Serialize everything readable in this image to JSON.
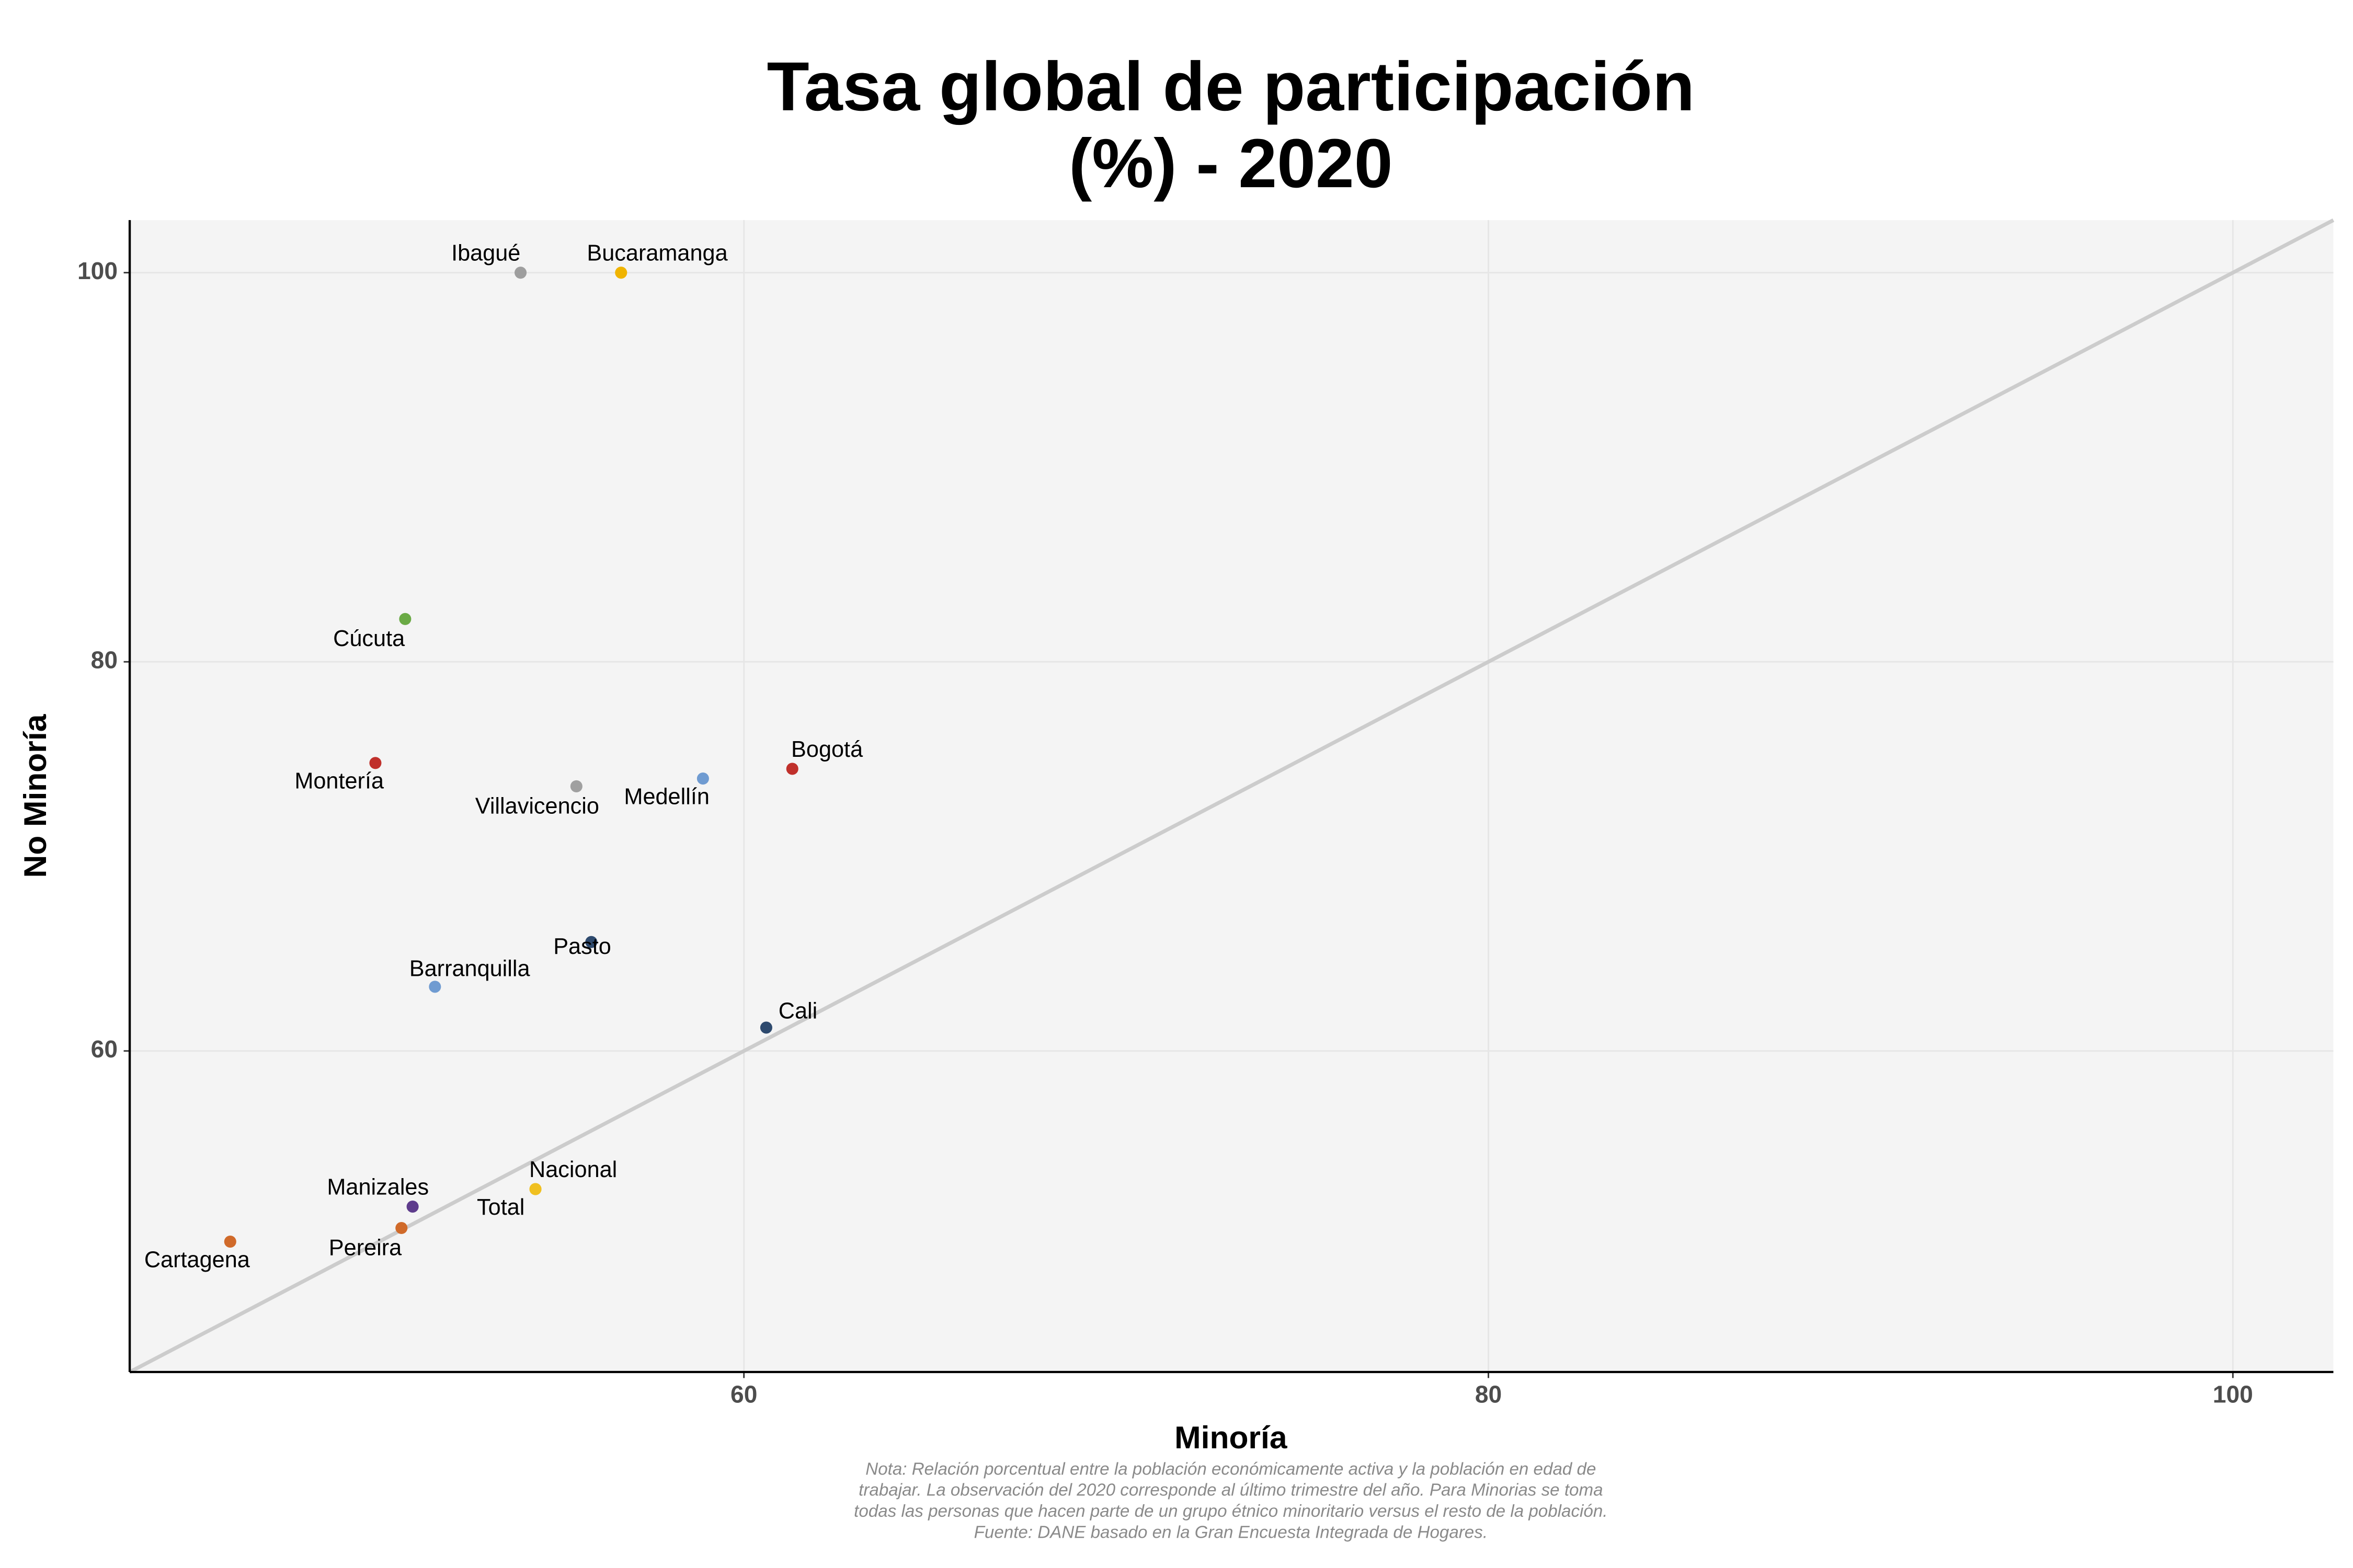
{
  "chart_data": {
    "type": "scatter",
    "title": [
      "Tasa global de participación",
      "(%) - 2020"
    ],
    "xlabel": "Minoría",
    "ylabel": "No Minoría",
    "xlim": [
      43.5,
      102.7
    ],
    "ylim": [
      43.5,
      102.7
    ],
    "xticks": [
      60,
      80,
      100
    ],
    "yticks": [
      60,
      80,
      100
    ],
    "grid": true,
    "points": [
      {
        "label": "Ibagué",
        "x": 54.0,
        "y": 100,
        "color": "#9e9e9e"
      },
      {
        "label": "Bucaramanga",
        "x": 56.7,
        "y": 100,
        "color": "#f0b400"
      },
      {
        "label": "Cúcuta",
        "x": 50.9,
        "y": 82.2,
        "color": "#6aaa45"
      },
      {
        "label": "Montería",
        "x": 50.1,
        "y": 74.8,
        "color": "#c0302b"
      },
      {
        "label": "Villavicencio",
        "x": 55.5,
        "y": 73.6,
        "color": "#a0a0a0"
      },
      {
        "label": "Medellín",
        "x": 58.9,
        "y": 74.0,
        "color": "#6f9bd1"
      },
      {
        "label": "Bogotá",
        "x": 61.3,
        "y": 74.5,
        "color": "#c0302b"
      },
      {
        "label": "Pasto",
        "x": 55.9,
        "y": 65.6,
        "color": "#2e4a6e"
      },
      {
        "label": "Barranquilla",
        "x": 51.7,
        "y": 63.3,
        "color": "#6f9bd1"
      },
      {
        "label": "Cali",
        "x": 60.6,
        "y": 61.2,
        "color": "#2e4a6e"
      },
      {
        "label": "Nacional",
        "x": 54.4,
        "y": 52.9,
        "color": "#f0c020"
      },
      {
        "label": "Total",
        "x": 54.4,
        "y": 52.9,
        "color": "#f0c020"
      },
      {
        "label": "Manizales",
        "x": 51.1,
        "y": 52.0,
        "color": "#5e3c8c"
      },
      {
        "label": "Pereira",
        "x": 50.8,
        "y": 50.9,
        "color": "#d06a2a"
      },
      {
        "label": "Cartagena",
        "x": 46.2,
        "y": 50.2,
        "color": "#d06a2a"
      }
    ],
    "note": [
      "Nota: Relación porcentual entre la población económicamente activa y la población en edad de",
      "trabajar. La observación del 2020 corresponde al último trimestre del año. Para Minorias se toma",
      "todas las personas que hacen parte de un grupo étnico minoritario versus el resto de la población.",
      "Fuente: DANE basado en la Gran Encuesta Integrada de Hogares."
    ]
  }
}
